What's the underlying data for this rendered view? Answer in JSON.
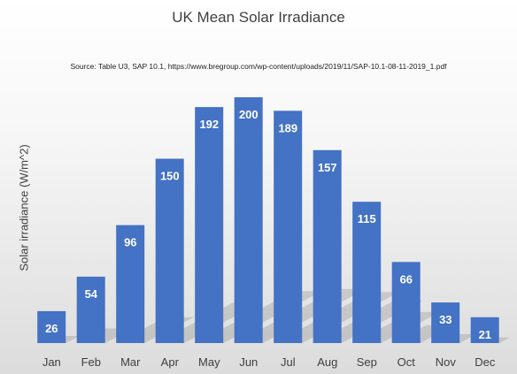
{
  "chart_data": {
    "type": "bar",
    "title": "UK Mean Solar Irradiance",
    "subtitle": "Source: Table U3, SAP 10.1, https://www.bregroup.com/wp-content/uploads/2019/11/SAP-10.1-08-11-2019_1.pdf",
    "xlabel": "",
    "ylabel": "Solar irradiance (W/m^2)",
    "categories": [
      "Jan",
      "Feb",
      "Mar",
      "Apr",
      "May",
      "Jun",
      "Jul",
      "Aug",
      "Sep",
      "Oct",
      "Nov",
      "Dec"
    ],
    "values": [
      26,
      54,
      96,
      150,
      192,
      200,
      189,
      157,
      115,
      66,
      33,
      21
    ],
    "ylim": [
      0,
      200
    ],
    "grid": false,
    "legend": "none",
    "bar_color": "#4472c4",
    "data_label_color": "#ffffff"
  }
}
